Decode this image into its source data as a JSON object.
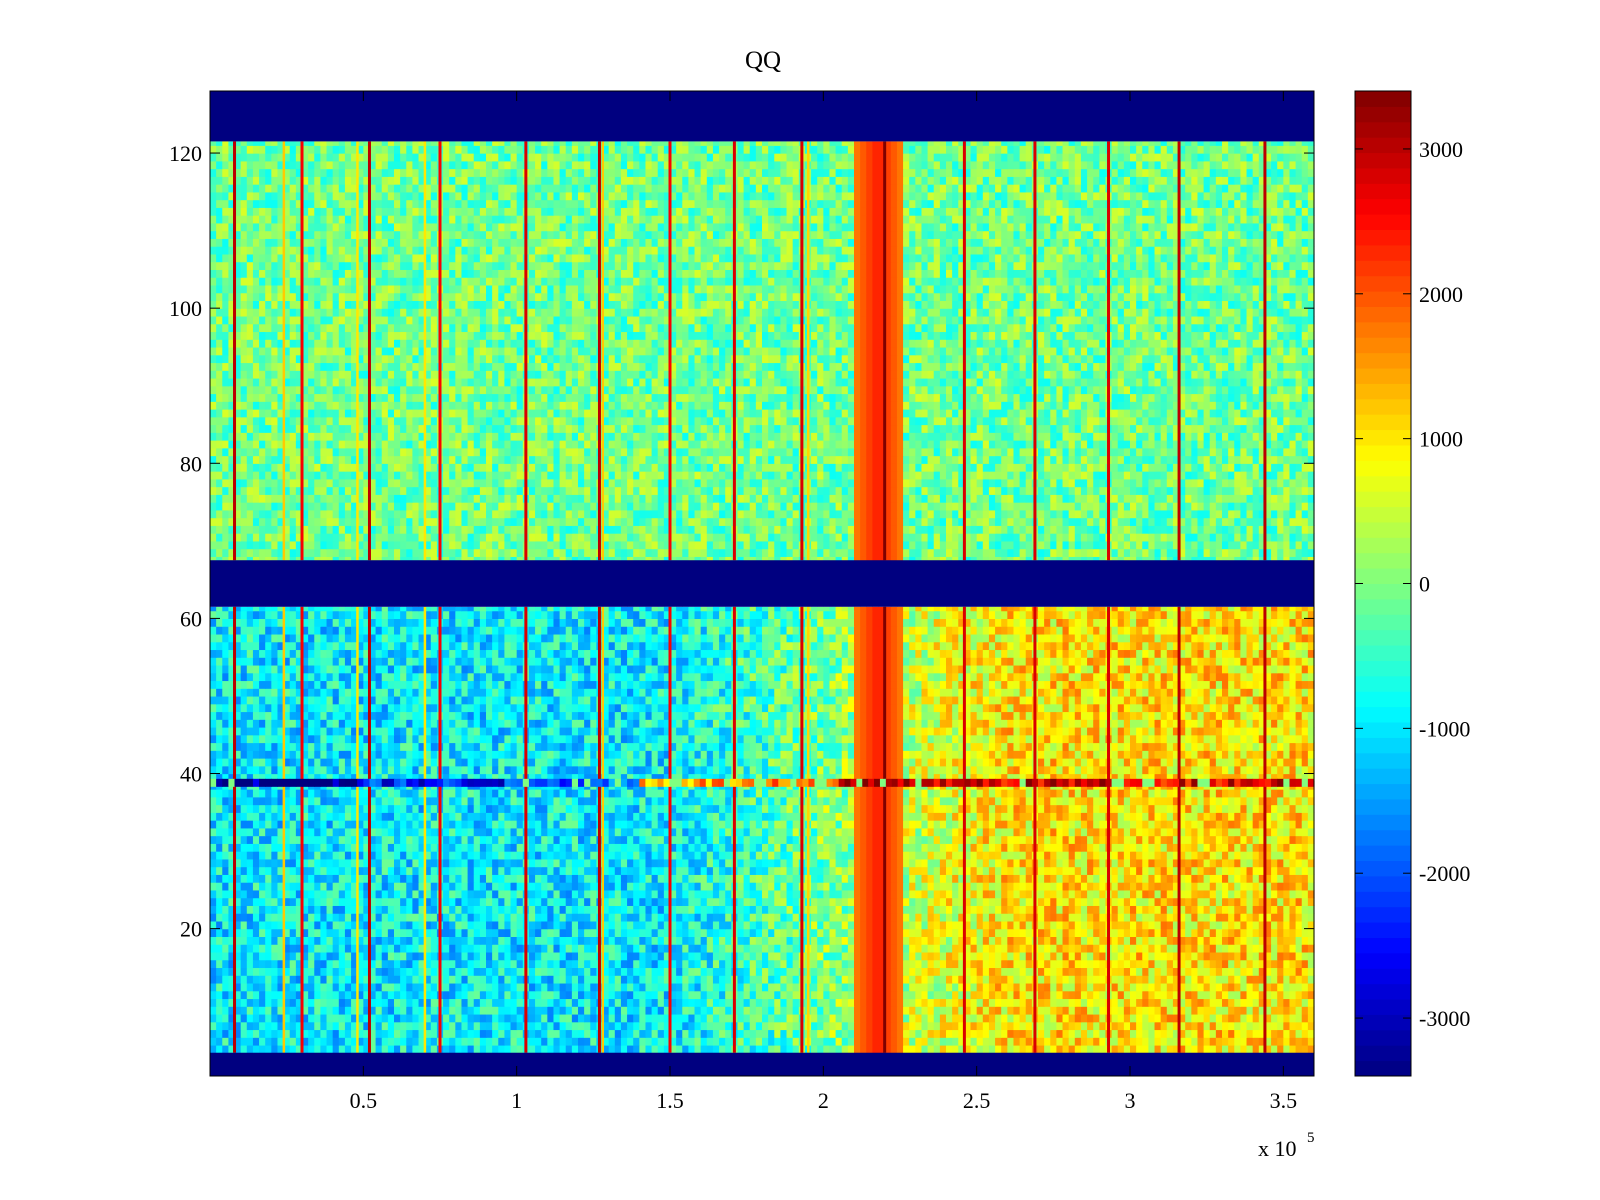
{
  "chart_data": {
    "type": "heatmap",
    "title": "QQ",
    "xlabel": "",
    "ylabel": "",
    "x_exponent_label": "x 10",
    "x_exponent_superscript": "5",
    "xlim": [
      0,
      360000
    ],
    "ylim": [
      1,
      128
    ],
    "x_ticks": [
      {
        "value": 50000,
        "label": "0.5"
      },
      {
        "value": 100000,
        "label": "1"
      },
      {
        "value": 150000,
        "label": "1.5"
      },
      {
        "value": 200000,
        "label": "2"
      },
      {
        "value": 250000,
        "label": "2.5"
      },
      {
        "value": 300000,
        "label": "3"
      },
      {
        "value": 350000,
        "label": "3.5"
      }
    ],
    "y_ticks": [
      {
        "value": 20,
        "label": "20"
      },
      {
        "value": 40,
        "label": "40"
      },
      {
        "value": 60,
        "label": "60"
      },
      {
        "value": 80,
        "label": "80"
      },
      {
        "value": 100,
        "label": "100"
      },
      {
        "value": 120,
        "label": "120"
      }
    ],
    "colormap": "jet",
    "clim": [
      -3400,
      3400
    ],
    "colorbar_ticks": [
      {
        "value": 3000,
        "label": "3000"
      },
      {
        "value": 2000,
        "label": "2000"
      },
      {
        "value": 1000,
        "label": "1000"
      },
      {
        "value": 0,
        "label": "0"
      },
      {
        "value": -1000,
        "label": "-1000"
      },
      {
        "value": -2000,
        "label": "-2000"
      },
      {
        "value": -3000,
        "label": "-3000"
      }
    ],
    "empty_bands": [
      {
        "y_from": 1,
        "y_to": 4,
        "value": -3400
      },
      {
        "y_from": 61.5,
        "y_to": 67.5,
        "value": -3400
      },
      {
        "y_from": 121.5,
        "y_to": 128,
        "value": -3400
      }
    ],
    "upper_block": {
      "y_range": [
        67.5,
        121.5
      ],
      "baseline_value": -100,
      "noise_amplitude": 700
    },
    "lower_block": {
      "y_range": [
        4,
        61.5
      ],
      "left_value": -900,
      "right_value": 1000,
      "transition_x": [
        150000,
        260000
      ],
      "noise_amplitude": 800
    },
    "hot_columns": [
      {
        "x": 8000,
        "value": 3000
      },
      {
        "x": 30000,
        "value": 2600
      },
      {
        "x": 52000,
        "value": 3000
      },
      {
        "x": 75000,
        "value": 2600
      },
      {
        "x": 103000,
        "value": 2800
      },
      {
        "x": 127000,
        "value": 3000
      },
      {
        "x": 150000,
        "value": 2600
      },
      {
        "x": 171000,
        "value": 2800
      },
      {
        "x": 193000,
        "value": 2800
      },
      {
        "x": 220000,
        "value": 3400
      },
      {
        "x": 246000,
        "value": 2800
      },
      {
        "x": 269000,
        "value": 2800
      },
      {
        "x": 293000,
        "value": 2800
      },
      {
        "x": 316000,
        "value": 3000
      },
      {
        "x": 344000,
        "value": 3000
      }
    ],
    "warm_columns": [
      {
        "x": 24000,
        "value": 1200
      },
      {
        "x": 48000,
        "value": 1000
      },
      {
        "x": 70000,
        "value": 1000
      },
      {
        "x": 128000,
        "value": 1200
      },
      {
        "x": 195000,
        "value": 1100
      }
    ],
    "hot_band": {
      "x_center": 218000,
      "width": 9000,
      "value": 2400
    },
    "row_39_stripe": {
      "y": 38.8,
      "segments": [
        {
          "x_from": 0,
          "x_to": 48000,
          "value": -3300
        },
        {
          "x_from": 48000,
          "x_to": 100000,
          "value": -2400
        },
        {
          "x_from": 100000,
          "x_to": 140000,
          "value": -1800
        },
        {
          "x_from": 140000,
          "x_to": 205000,
          "value": 1500
        },
        {
          "x_from": 205000,
          "x_to": 230000,
          "value": 3300
        },
        {
          "x_from": 230000,
          "x_to": 360000,
          "value": 2800
        }
      ]
    }
  }
}
